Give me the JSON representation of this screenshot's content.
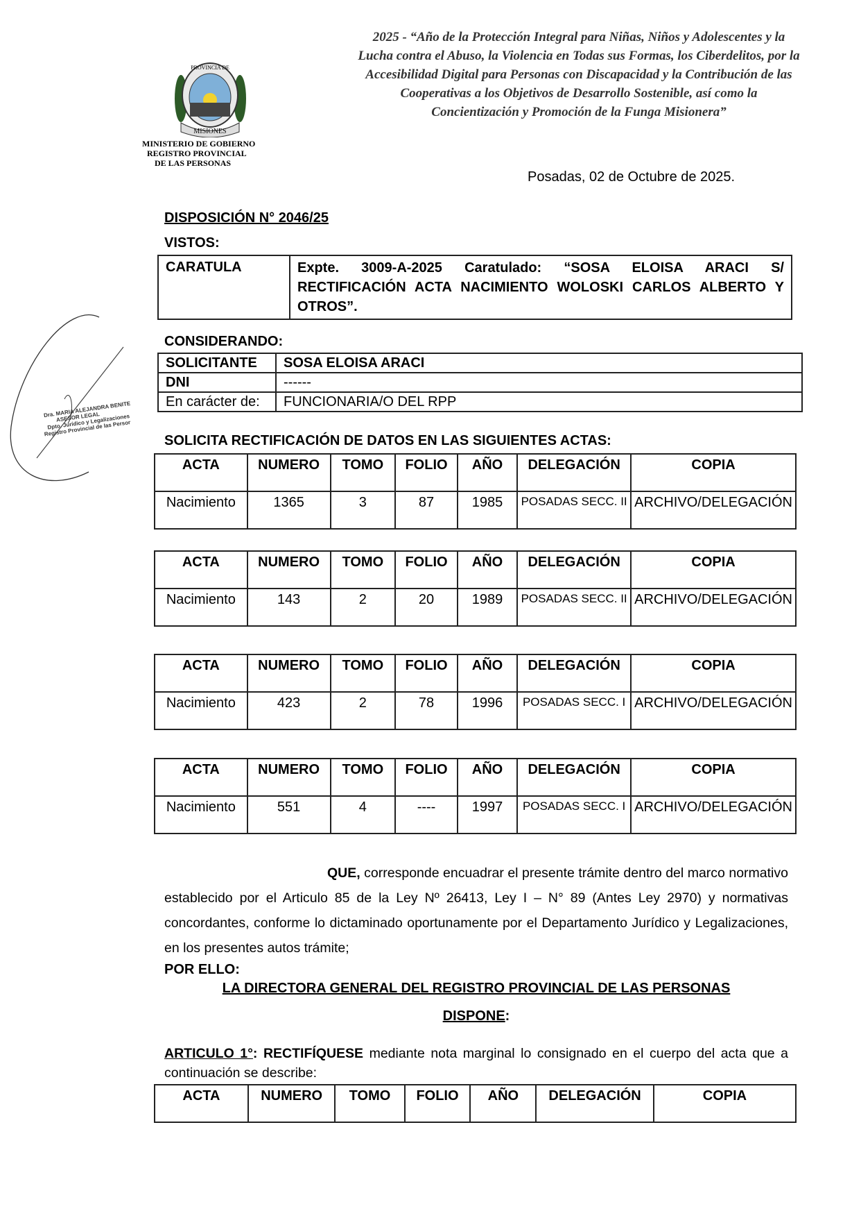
{
  "header": {
    "motto": [
      "2025 - “Año de la Protección Integral para Niñas, Niños y Adolescentes y la",
      "Lucha contra el Abuso, la Violencia en Todas sus Formas, los Ciberdelitos, por la",
      "Accesibilidad Digital para Personas con Discapacidad y la Contribución de las",
      "Cooperativas a los Objetivos de Desarrollo Sostenible, así como la",
      "Concientización y Promoción de la Funga Misionera”"
    ],
    "seal_text": [
      "PROVINCIA DE",
      "MISIONES"
    ],
    "ministry": [
      "MINISTERIO DE GOBIERNO",
      "REGISTRO PROVINCIAL",
      "DE LAS PERSONAS"
    ],
    "date": "Posadas, 02 de Octubre de 2025."
  },
  "stamp": [
    "Dra. MARIA ALEJANDRA BENITEZ",
    "ASESOR LEGAL",
    "Dpto. Jurídico y Legalizaciones",
    "Registro Provincial de las Personas"
  ],
  "disposicion": "DISPOSICIÓN N° 2046/25",
  "vistos": {
    "label": "VISTOS:",
    "caratula_label": "CARATULA",
    "caratula_value": "Expte. 3009-A-2025 Caratulado: “SOSA ELOISA ARACI S/ RECTIFICACIÓN ACTA NACIMIENTO WOLOSKI CARLOS ALBERTO Y OTROS”."
  },
  "considerando": {
    "label": "CONSIDERANDO:",
    "rows": [
      [
        "SOLICITANTE",
        "SOSA ELOISA ARACI"
      ],
      [
        "DNI",
        "------"
      ],
      [
        "En carácter de:",
        "FUNCIONARIA/O DEL RPP"
      ]
    ]
  },
  "solicita": "SOLICITA RECTIFICACIÓN DE DATOS EN LAS SIGUIENTES ACTAS:",
  "actas_headers": [
    "ACTA",
    "NUMERO",
    "TOMO",
    "FOLIO",
    "AÑO",
    "DELEGACIÓN",
    "COPIA"
  ],
  "actas": [
    [
      "Nacimiento",
      "1365",
      "3",
      "87",
      "1985",
      "POSADAS SECC. II",
      "ARCHIVO/DELEGACIÓN"
    ],
    [
      "Nacimiento",
      "143",
      "2",
      "20",
      "1989",
      "POSADAS SECC. II",
      "ARCHIVO/DELEGACIÓN"
    ],
    [
      "Nacimiento",
      "423",
      "2",
      "78",
      "1996",
      "POSADAS SECC. I",
      "ARCHIVO/DELEGACIÓN"
    ],
    [
      "Nacimiento",
      "551",
      "4",
      "----",
      "1997",
      "POSADAS SECC. I",
      "ARCHIVO/DELEGACIÓN"
    ]
  ],
  "que": {
    "lead": "QUE,",
    "text": " corresponde encuadrar el presente trámite dentro del marco normativo establecido por el Articulo 85 de la Ley Nº 26413, Ley I – N° 89 (Antes Ley 2970) y normativas concordantes, conforme lo dictaminado oportunamente por el Departamento Jurídico y Legalizaciones, en los presentes autos trámite;"
  },
  "por_ello": "POR ELLO:",
  "directora": "LA  DIRECTORA GENERAL DEL REGISTRO PROVINCIAL DE LAS PERSONAS",
  "dispone": "DISPONE",
  "articulo": {
    "label": "ARTICULO 1°",
    "bold": "RECTIFÍQUESE",
    "text": " mediante nota marginal lo consignado en el cuerpo del acta que a continuación se describe:"
  }
}
